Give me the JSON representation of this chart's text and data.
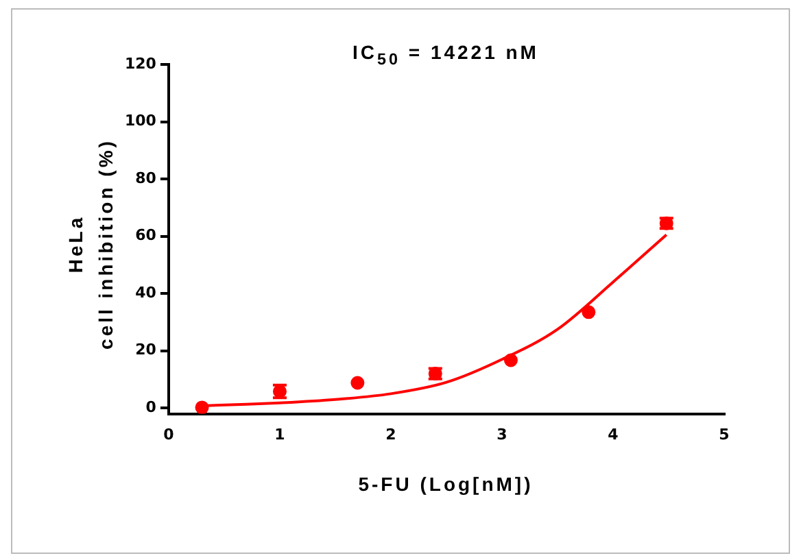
{
  "chart_data": {
    "type": "scatter",
    "title": "IC$_{50}$ = 14221 nM",
    "xlabel": "5-FU (Log[nM])",
    "ylabel": "HeLa\ncell inhibition (%)",
    "xlim": [
      0,
      5
    ],
    "xticks": [
      0,
      1,
      2,
      3,
      4,
      5
    ],
    "ylim": [
      -2,
      120
    ],
    "yticks": [
      0,
      20,
      40,
      60,
      80,
      100,
      120
    ],
    "grid": false,
    "legend": false,
    "marker": "circle",
    "series": [
      {
        "type": "scatter",
        "color": "#ff0000",
        "x": [
          0.3,
          1.0,
          1.7,
          2.4,
          3.08,
          3.78,
          4.48
        ],
        "values": [
          0.2,
          5.8,
          8.8,
          12,
          16.7,
          33.5,
          64.5
        ],
        "errors": [
          null,
          2.2,
          null,
          1.8,
          null,
          null,
          1.8
        ]
      },
      {
        "type": "line",
        "color": "#ff0000",
        "marker": "none",
        "x": [
          0.3,
          0.7,
          1.0,
          1.5,
          2.0,
          2.5,
          3.0,
          3.5,
          4.0,
          4.48
        ],
        "values": [
          0.8,
          1.3,
          1.8,
          3,
          5,
          9,
          17,
          27.5,
          44,
          60.5
        ]
      }
    ]
  }
}
